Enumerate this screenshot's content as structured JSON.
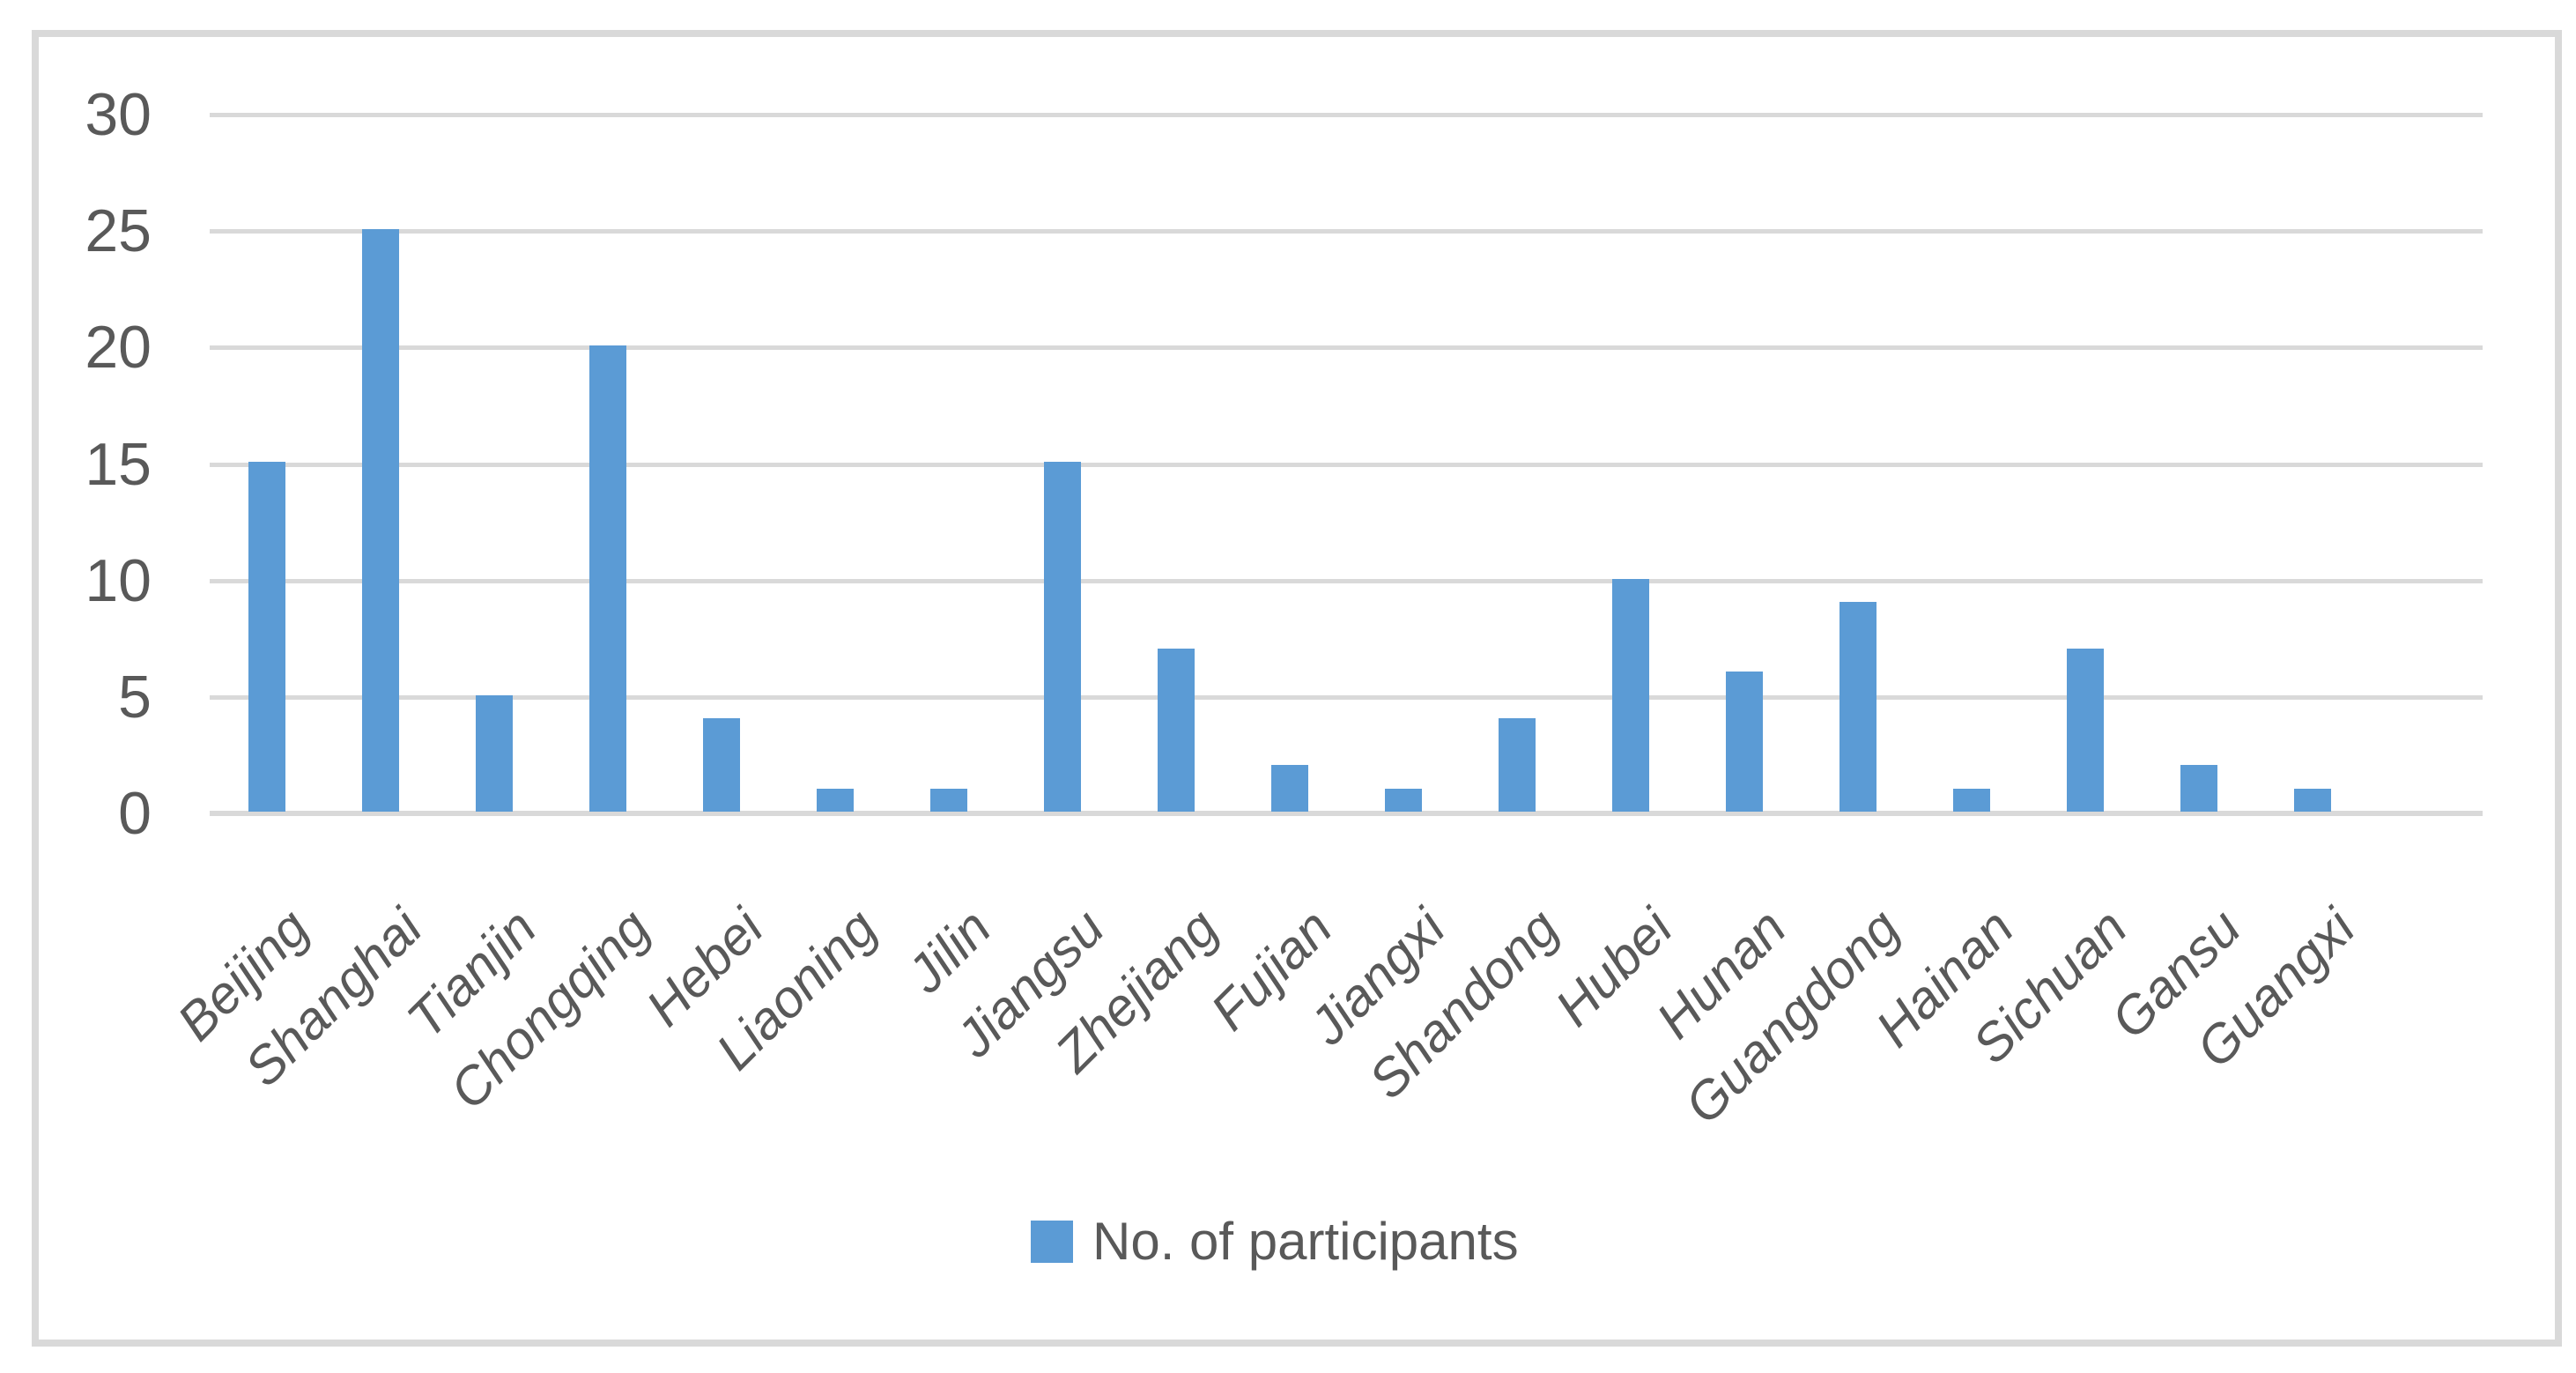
{
  "chart_data": {
    "type": "bar",
    "title": "",
    "categories": [
      "Beijing",
      "Shanghai",
      "Tianjin",
      "Chongqing",
      "Hebei",
      "Liaoning",
      "Jilin",
      "Jiangsu",
      "Zhejiang",
      "Fujian",
      "Jiangxi",
      "Shandong",
      "Hubei",
      "Hunan",
      "Guangdong",
      "Hainan",
      "Sichuan",
      "Gansu",
      "Guangxi"
    ],
    "series": [
      {
        "name": "No. of participants",
        "values": [
          15,
          25,
          5,
          20,
          4,
          1,
          1,
          15,
          7,
          2,
          1,
          4,
          10,
          6,
          9,
          1,
          7,
          2,
          1
        ]
      }
    ],
    "xlabel": "",
    "ylabel": "",
    "ylim": [
      0,
      30
    ],
    "yticks": [
      0,
      5,
      10,
      15,
      20,
      25,
      30
    ],
    "grid": "horizontal",
    "legend_position": "bottom-center",
    "x_label_rotation_deg": 45,
    "colors": {
      "bar": "#5b9bd5",
      "gridline": "#d9d9d9",
      "chart_border": "#d9d9d9",
      "text": "#595959",
      "background": "#ffffff"
    }
  }
}
